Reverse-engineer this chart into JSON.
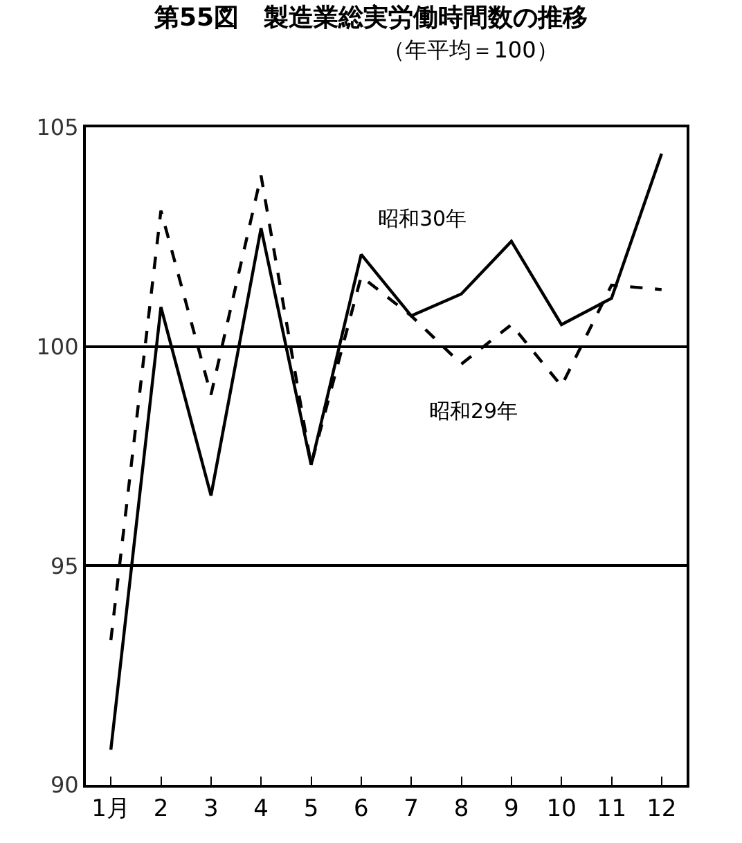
{
  "chart_data": {
    "type": "line",
    "title": "第55図　製造業総実労働時間数の推移",
    "subtitle": "（年平均＝100）",
    "categories": [
      "1月",
      "2",
      "3",
      "4",
      "5",
      "6",
      "7",
      "8",
      "9",
      "10",
      "11",
      "12"
    ],
    "series": [
      {
        "name": "昭和30年",
        "color": "#000000",
        "line_style": "solid",
        "values": [
          90.8,
          100.9,
          96.6,
          102.7,
          97.3,
          102.1,
          100.7,
          101.2,
          102.4,
          100.5,
          101.1,
          104.4
        ]
      },
      {
        "name": "昭和29年",
        "color": "#000000",
        "line_style": "dashed",
        "values": [
          93.3,
          103.1,
          98.9,
          103.9,
          97.3,
          101.6,
          100.7,
          99.6,
          100.5,
          99.1,
          101.4,
          101.3
        ]
      }
    ],
    "ylim": [
      90,
      105
    ],
    "yticks": [
      90,
      95,
      100,
      105
    ],
    "grid": "y",
    "legend": false,
    "marker": "none"
  }
}
